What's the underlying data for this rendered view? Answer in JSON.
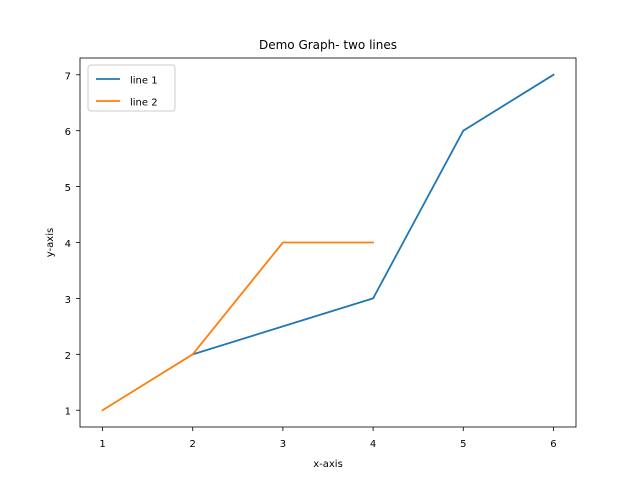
{
  "chart_data": {
    "type": "line",
    "title": "Demo Graph- two lines",
    "xlabel": "x-axis",
    "ylabel": "y-axis",
    "xlim": [
      0.75,
      6.25
    ],
    "ylim": [
      0.7,
      7.3
    ],
    "xticks": [
      1,
      2,
      3,
      4,
      5,
      6
    ],
    "yticks": [
      1,
      2,
      3,
      4,
      5,
      6,
      7
    ],
    "grid": false,
    "legend_position": "upper left",
    "series": [
      {
        "name": "line 1",
        "color": "#1f77b4",
        "x": [
          2,
          4,
          5,
          6
        ],
        "y": [
          2,
          3,
          6,
          7
        ]
      },
      {
        "name": "line 2",
        "color": "#ff7f0e",
        "x": [
          1,
          2,
          3,
          4
        ],
        "y": [
          1,
          2,
          4,
          4
        ]
      }
    ]
  }
}
